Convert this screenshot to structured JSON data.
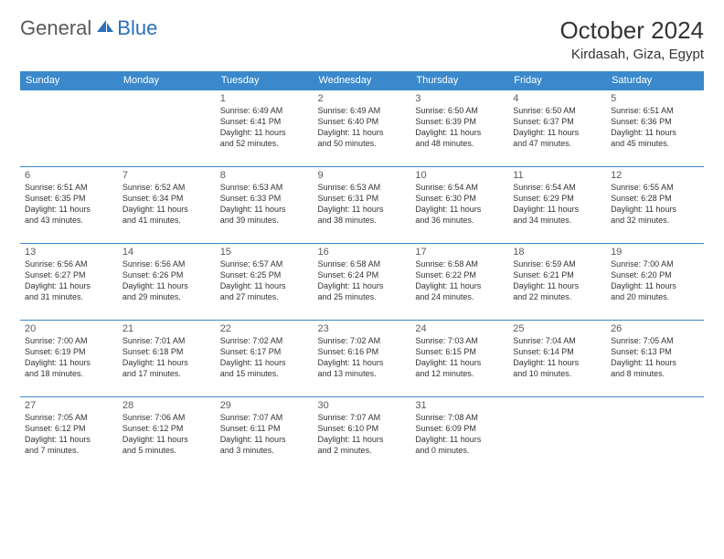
{
  "logo": {
    "general": "General",
    "blue": "Blue"
  },
  "title": "October 2024",
  "location": "Kirdasah, Giza, Egypt",
  "colors": {
    "accent": "#3b89cc",
    "text": "#333333",
    "logo_blue": "#2c6fbb",
    "logo_gray": "#5a5a5a"
  },
  "dayHeaders": [
    "Sunday",
    "Monday",
    "Tuesday",
    "Wednesday",
    "Thursday",
    "Friday",
    "Saturday"
  ],
  "weeks": [
    [
      null,
      null,
      {
        "n": "1",
        "sr": "Sunrise: 6:49 AM",
        "ss": "Sunset: 6:41 PM",
        "d1": "Daylight: 11 hours",
        "d2": "and 52 minutes."
      },
      {
        "n": "2",
        "sr": "Sunrise: 6:49 AM",
        "ss": "Sunset: 6:40 PM",
        "d1": "Daylight: 11 hours",
        "d2": "and 50 minutes."
      },
      {
        "n": "3",
        "sr": "Sunrise: 6:50 AM",
        "ss": "Sunset: 6:39 PM",
        "d1": "Daylight: 11 hours",
        "d2": "and 48 minutes."
      },
      {
        "n": "4",
        "sr": "Sunrise: 6:50 AM",
        "ss": "Sunset: 6:37 PM",
        "d1": "Daylight: 11 hours",
        "d2": "and 47 minutes."
      },
      {
        "n": "5",
        "sr": "Sunrise: 6:51 AM",
        "ss": "Sunset: 6:36 PM",
        "d1": "Daylight: 11 hours",
        "d2": "and 45 minutes."
      }
    ],
    [
      {
        "n": "6",
        "sr": "Sunrise: 6:51 AM",
        "ss": "Sunset: 6:35 PM",
        "d1": "Daylight: 11 hours",
        "d2": "and 43 minutes."
      },
      {
        "n": "7",
        "sr": "Sunrise: 6:52 AM",
        "ss": "Sunset: 6:34 PM",
        "d1": "Daylight: 11 hours",
        "d2": "and 41 minutes."
      },
      {
        "n": "8",
        "sr": "Sunrise: 6:53 AM",
        "ss": "Sunset: 6:33 PM",
        "d1": "Daylight: 11 hours",
        "d2": "and 39 minutes."
      },
      {
        "n": "9",
        "sr": "Sunrise: 6:53 AM",
        "ss": "Sunset: 6:31 PM",
        "d1": "Daylight: 11 hours",
        "d2": "and 38 minutes."
      },
      {
        "n": "10",
        "sr": "Sunrise: 6:54 AM",
        "ss": "Sunset: 6:30 PM",
        "d1": "Daylight: 11 hours",
        "d2": "and 36 minutes."
      },
      {
        "n": "11",
        "sr": "Sunrise: 6:54 AM",
        "ss": "Sunset: 6:29 PM",
        "d1": "Daylight: 11 hours",
        "d2": "and 34 minutes."
      },
      {
        "n": "12",
        "sr": "Sunrise: 6:55 AM",
        "ss": "Sunset: 6:28 PM",
        "d1": "Daylight: 11 hours",
        "d2": "and 32 minutes."
      }
    ],
    [
      {
        "n": "13",
        "sr": "Sunrise: 6:56 AM",
        "ss": "Sunset: 6:27 PM",
        "d1": "Daylight: 11 hours",
        "d2": "and 31 minutes."
      },
      {
        "n": "14",
        "sr": "Sunrise: 6:56 AM",
        "ss": "Sunset: 6:26 PM",
        "d1": "Daylight: 11 hours",
        "d2": "and 29 minutes."
      },
      {
        "n": "15",
        "sr": "Sunrise: 6:57 AM",
        "ss": "Sunset: 6:25 PM",
        "d1": "Daylight: 11 hours",
        "d2": "and 27 minutes."
      },
      {
        "n": "16",
        "sr": "Sunrise: 6:58 AM",
        "ss": "Sunset: 6:24 PM",
        "d1": "Daylight: 11 hours",
        "d2": "and 25 minutes."
      },
      {
        "n": "17",
        "sr": "Sunrise: 6:58 AM",
        "ss": "Sunset: 6:22 PM",
        "d1": "Daylight: 11 hours",
        "d2": "and 24 minutes."
      },
      {
        "n": "18",
        "sr": "Sunrise: 6:59 AM",
        "ss": "Sunset: 6:21 PM",
        "d1": "Daylight: 11 hours",
        "d2": "and 22 minutes."
      },
      {
        "n": "19",
        "sr": "Sunrise: 7:00 AM",
        "ss": "Sunset: 6:20 PM",
        "d1": "Daylight: 11 hours",
        "d2": "and 20 minutes."
      }
    ],
    [
      {
        "n": "20",
        "sr": "Sunrise: 7:00 AM",
        "ss": "Sunset: 6:19 PM",
        "d1": "Daylight: 11 hours",
        "d2": "and 18 minutes."
      },
      {
        "n": "21",
        "sr": "Sunrise: 7:01 AM",
        "ss": "Sunset: 6:18 PM",
        "d1": "Daylight: 11 hours",
        "d2": "and 17 minutes."
      },
      {
        "n": "22",
        "sr": "Sunrise: 7:02 AM",
        "ss": "Sunset: 6:17 PM",
        "d1": "Daylight: 11 hours",
        "d2": "and 15 minutes."
      },
      {
        "n": "23",
        "sr": "Sunrise: 7:02 AM",
        "ss": "Sunset: 6:16 PM",
        "d1": "Daylight: 11 hours",
        "d2": "and 13 minutes."
      },
      {
        "n": "24",
        "sr": "Sunrise: 7:03 AM",
        "ss": "Sunset: 6:15 PM",
        "d1": "Daylight: 11 hours",
        "d2": "and 12 minutes."
      },
      {
        "n": "25",
        "sr": "Sunrise: 7:04 AM",
        "ss": "Sunset: 6:14 PM",
        "d1": "Daylight: 11 hours",
        "d2": "and 10 minutes."
      },
      {
        "n": "26",
        "sr": "Sunrise: 7:05 AM",
        "ss": "Sunset: 6:13 PM",
        "d1": "Daylight: 11 hours",
        "d2": "and 8 minutes."
      }
    ],
    [
      {
        "n": "27",
        "sr": "Sunrise: 7:05 AM",
        "ss": "Sunset: 6:12 PM",
        "d1": "Daylight: 11 hours",
        "d2": "and 7 minutes."
      },
      {
        "n": "28",
        "sr": "Sunrise: 7:06 AM",
        "ss": "Sunset: 6:12 PM",
        "d1": "Daylight: 11 hours",
        "d2": "and 5 minutes."
      },
      {
        "n": "29",
        "sr": "Sunrise: 7:07 AM",
        "ss": "Sunset: 6:11 PM",
        "d1": "Daylight: 11 hours",
        "d2": "and 3 minutes."
      },
      {
        "n": "30",
        "sr": "Sunrise: 7:07 AM",
        "ss": "Sunset: 6:10 PM",
        "d1": "Daylight: 11 hours",
        "d2": "and 2 minutes."
      },
      {
        "n": "31",
        "sr": "Sunrise: 7:08 AM",
        "ss": "Sunset: 6:09 PM",
        "d1": "Daylight: 11 hours",
        "d2": "and 0 minutes."
      },
      null,
      null
    ]
  ]
}
